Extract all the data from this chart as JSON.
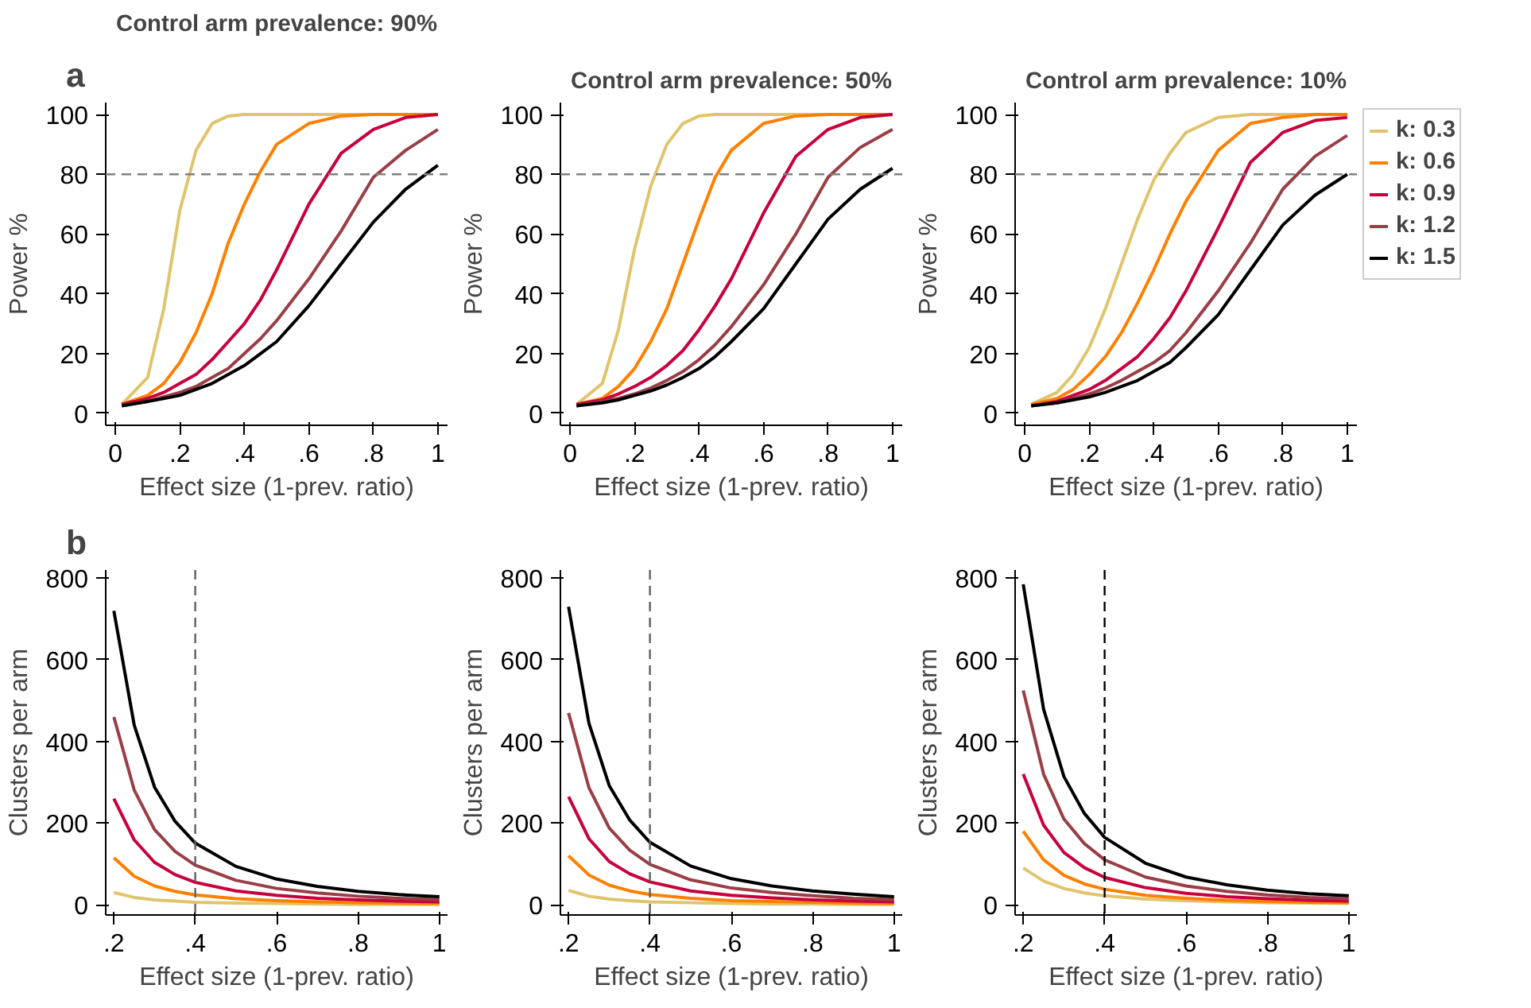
{
  "chart_data": [
    {
      "type": "line",
      "title": "Control arm prevalence: 90%",
      "annotations": [
        "a"
      ],
      "xlabel": "Effect size (1-prev. ratio)",
      "ylabel": "Power %",
      "x": [
        0.02,
        0.1,
        0.15,
        0.2,
        0.25,
        0.3,
        0.35,
        0.4,
        0.45,
        0.5,
        0.6,
        0.7,
        0.8,
        0.9,
        1
      ],
      "xlim": [
        -0.03,
        1.03
      ],
      "xticks": [
        0,
        {
          "value": 0.2,
          "label": ".2"
        },
        {
          "value": 0.4,
          "label": ".4"
        },
        {
          "value": 0.6,
          "label": ".6"
        },
        {
          "value": 0.8,
          "label": ".8"
        },
        1
      ],
      "ylim": [
        -4,
        104
      ],
      "yticks": [
        0,
        20,
        40,
        60,
        80,
        100
      ],
      "grid": false,
      "ref_lines": [
        {
          "axis": "y",
          "value": 80,
          "color": "#808080",
          "line_style": "dashed"
        }
      ],
      "series": [
        {
          "color": "#e0c46c",
          "values": [
            3,
            12,
            35,
            68,
            88,
            97,
            99.5,
            100,
            100,
            100,
            100,
            100,
            100,
            100,
            100
          ]
        },
        {
          "color": "#ff8000",
          "values": [
            3,
            6,
            10,
            17,
            27,
            40,
            57,
            70,
            81,
            90,
            97,
            99.5,
            100,
            100,
            100
          ]
        },
        {
          "color": "#c8003c",
          "values": [
            3,
            5,
            7,
            10,
            13,
            18,
            24,
            30,
            38,
            48,
            70,
            87,
            95,
            99,
            100
          ]
        },
        {
          "color": "#9a3e46",
          "values": [
            2.5,
            4,
            5.5,
            7,
            9,
            12,
            15,
            20,
            25,
            31,
            45,
            61,
            79,
            88,
            95
          ]
        },
        {
          "color": "#000000",
          "values": [
            2.5,
            4,
            5,
            6,
            8,
            10,
            13,
            16,
            20,
            24,
            36,
            50,
            64,
            75,
            83
          ]
        }
      ]
    },
    {
      "type": "line",
      "title": "Control arm prevalence: 50%",
      "xlabel": "Effect size (1-prev. ratio)",
      "ylabel": "Power %",
      "x": [
        0.02,
        0.1,
        0.15,
        0.2,
        0.25,
        0.3,
        0.35,
        0.4,
        0.45,
        0.5,
        0.6,
        0.7,
        0.8,
        0.9,
        1
      ],
      "xlim": [
        -0.03,
        1.03
      ],
      "xticks": [
        0,
        {
          "value": 0.2,
          "label": ".2"
        },
        {
          "value": 0.4,
          "label": ".4"
        },
        {
          "value": 0.6,
          "label": ".6"
        },
        {
          "value": 0.8,
          "label": ".8"
        },
        1
      ],
      "ylim": [
        -4,
        104
      ],
      "yticks": [
        0,
        20,
        40,
        60,
        80,
        100
      ],
      "grid": false,
      "ref_lines": [
        {
          "axis": "y",
          "value": 80,
          "color": "#808080",
          "line_style": "dashed"
        }
      ],
      "series": [
        {
          "color": "#e0c46c",
          "values": [
            3,
            10,
            28,
            55,
            76,
            90,
            97,
            99.5,
            100,
            100,
            100,
            100,
            100,
            100,
            100
          ]
        },
        {
          "color": "#ff8000",
          "values": [
            3,
            5,
            9,
            15,
            24,
            35,
            50,
            65,
            79,
            88,
            97,
            99.5,
            100,
            100,
            100
          ]
        },
        {
          "color": "#c8003c",
          "values": [
            3,
            4.5,
            6.5,
            9,
            12,
            16,
            21,
            28,
            36,
            45,
            67,
            86,
            95,
            99,
            100
          ]
        },
        {
          "color": "#9a3e46",
          "values": [
            2.5,
            4,
            5,
            6.5,
            8.5,
            11,
            14,
            18,
            23,
            29,
            43,
            60,
            79,
            89,
            95
          ]
        },
        {
          "color": "#000000",
          "values": [
            2.5,
            3.5,
            4.5,
            6,
            7.5,
            9.5,
            12,
            15,
            19,
            24,
            35,
            50,
            65,
            75,
            82
          ]
        }
      ]
    },
    {
      "type": "line",
      "title": "Control arm prevalence: 10%",
      "xlabel": "Effect size (1-prev. ratio)",
      "ylabel": "Power %",
      "x": [
        0.02,
        0.1,
        0.15,
        0.2,
        0.25,
        0.3,
        0.35,
        0.4,
        0.45,
        0.5,
        0.6,
        0.7,
        0.8,
        0.9,
        1
      ],
      "xlim": [
        -0.03,
        1.03
      ],
      "xticks": [
        0,
        {
          "value": 0.2,
          "label": ".2"
        },
        {
          "value": 0.4,
          "label": ".4"
        },
        {
          "value": 0.6,
          "label": ".6"
        },
        {
          "value": 0.8,
          "label": ".8"
        },
        1
      ],
      "ylim": [
        -4,
        104
      ],
      "yticks": [
        0,
        20,
        40,
        60,
        80,
        100
      ],
      "grid": false,
      "legend": "right",
      "ref_lines": [
        {
          "axis": "y",
          "value": 80,
          "color": "#808080",
          "line_style": "dashed"
        }
      ],
      "series": [
        {
          "name": "k: 0.3",
          "color": "#e0c46c",
          "values": [
            3,
            7,
            13,
            22,
            35,
            50,
            65,
            78,
            87,
            94,
            99,
            100,
            100,
            100,
            100
          ]
        },
        {
          "name": "k: 0.6",
          "color": "#ff8000",
          "values": [
            3,
            5,
            8,
            13,
            19,
            27,
            37,
            48,
            60,
            71,
            88,
            97,
            99,
            100,
            100
          ]
        },
        {
          "name": "k: 0.9",
          "color": "#c8003c",
          "values": [
            2.5,
            4,
            6,
            8,
            11,
            15,
            19,
            25,
            32,
            41,
            62,
            84,
            94,
            98,
            99
          ]
        },
        {
          "name": "k: 1.2",
          "color": "#9a3e46",
          "values": [
            2.5,
            3.5,
            5,
            6.5,
            8.5,
            11,
            14,
            17,
            21,
            27,
            41,
            57,
            75,
            86,
            93
          ]
        },
        {
          "name": "k: 1.5",
          "color": "#000000",
          "values": [
            2.5,
            3.5,
            4.5,
            5.5,
            7,
            9,
            11,
            14,
            17,
            22,
            33,
            48,
            63,
            73,
            80
          ]
        }
      ]
    },
    {
      "type": "line",
      "annotations": [
        "b"
      ],
      "xlabel": "Effect size (1-prev. ratio)",
      "ylabel": "Clusters per arm",
      "x": [
        0.2,
        0.25,
        0.3,
        0.35,
        0.4,
        0.5,
        0.6,
        0.7,
        0.8,
        0.9,
        1
      ],
      "xlim": [
        0.18,
        1.02
      ],
      "xticks": [
        {
          "value": 0.2,
          "label": ".2"
        },
        {
          "value": 0.4,
          "label": ".4"
        },
        {
          "value": 0.6,
          "label": ".6"
        },
        {
          "value": 0.8,
          "label": ".8"
        },
        1
      ],
      "ylim": [
        -25,
        820
      ],
      "yticks": [
        0,
        200,
        400,
        600,
        800
      ],
      "grid": false,
      "ref_lines": [
        {
          "axis": "x",
          "value": 0.4,
          "color": "#606060",
          "line_style": "dashed"
        }
      ],
      "series": [
        {
          "color": "#e0c46c",
          "values": [
            30,
            18,
            12,
            9,
            6,
            4,
            3,
            2,
            1,
            1,
            1
          ]
        },
        {
          "color": "#ff8000",
          "values": [
            115,
            70,
            46,
            33,
            24,
            15,
            10,
            7,
            5,
            4,
            3
          ]
        },
        {
          "color": "#c8003c",
          "values": [
            260,
            159,
            104,
            74,
            55,
            34,
            23,
            16,
            12,
            9,
            7
          ]
        },
        {
          "color": "#9a3e46",
          "values": [
            460,
            281,
            184,
            131,
            97,
            60,
            40,
            29,
            21,
            16,
            13
          ]
        },
        {
          "color": "#000000",
          "values": [
            720,
            440,
            288,
            205,
            151,
            94,
            63,
            45,
            33,
            25,
            20
          ]
        }
      ]
    },
    {
      "type": "line",
      "xlabel": "Effect size (1-prev. ratio)",
      "ylabel": "Clusters per arm",
      "x": [
        0.2,
        0.25,
        0.3,
        0.35,
        0.4,
        0.5,
        0.6,
        0.7,
        0.8,
        0.9,
        1
      ],
      "xlim": [
        0.18,
        1.02
      ],
      "xticks": [
        {
          "value": 0.2,
          "label": ".2"
        },
        {
          "value": 0.4,
          "label": ".4"
        },
        {
          "value": 0.6,
          "label": ".6"
        },
        {
          "value": 0.8,
          "label": ".8"
        },
        1
      ],
      "ylim": [
        -25,
        820
      ],
      "yticks": [
        0,
        200,
        400,
        600,
        800
      ],
      "grid": false,
      "ref_lines": [
        {
          "axis": "x",
          "value": 0.4,
          "color": "#606060",
          "line_style": "dashed"
        }
      ],
      "series": [
        {
          "color": "#e0c46c",
          "values": [
            35,
            21,
            14,
            10,
            7,
            5,
            3,
            2,
            2,
            1,
            1
          ]
        },
        {
          "color": "#ff8000",
          "values": [
            120,
            73,
            48,
            34,
            25,
            16,
            10,
            8,
            6,
            4,
            3
          ]
        },
        {
          "color": "#c8003c",
          "values": [
            265,
            162,
            106,
            76,
            56,
            34,
            23,
            17,
            12,
            9,
            7
          ]
        },
        {
          "color": "#9a3e46",
          "values": [
            470,
            287,
            188,
            134,
            99,
            61,
            41,
            30,
            22,
            16,
            13
          ]
        },
        {
          "color": "#000000",
          "values": [
            730,
            445,
            292,
            208,
            153,
            95,
            64,
            46,
            34,
            26,
            20
          ]
        }
      ]
    },
    {
      "type": "line",
      "xlabel": "Effect size (1-prev. ratio)",
      "ylabel": "Clusters per arm",
      "x": [
        0.2,
        0.25,
        0.3,
        0.35,
        0.4,
        0.5,
        0.6,
        0.7,
        0.8,
        0.9,
        1
      ],
      "xlim": [
        0.18,
        1.02
      ],
      "xticks": [
        {
          "value": 0.2,
          "label": ".2"
        },
        {
          "value": 0.4,
          "label": ".4"
        },
        {
          "value": 0.6,
          "label": ".6"
        },
        {
          "value": 0.8,
          "label": ".8"
        },
        1
      ],
      "ylim": [
        -25,
        820
      ],
      "yticks": [
        0,
        200,
        400,
        600,
        800
      ],
      "grid": false,
      "ref_lines": [
        {
          "axis": "x",
          "value": 0.4,
          "color": "#000000",
          "line_style": "dashed"
        }
      ],
      "series": [
        {
          "color": "#e0c46c",
          "values": [
            90,
            58,
            40,
            29,
            22,
            14,
            10,
            7,
            5,
            4,
            3
          ]
        },
        {
          "color": "#ff8000",
          "values": [
            180,
            110,
            72,
            51,
            38,
            23,
            16,
            11,
            8,
            6,
            5
          ]
        },
        {
          "color": "#c8003c",
          "values": [
            320,
            195,
            128,
            91,
            67,
            42,
            28,
            20,
            15,
            11,
            9
          ]
        },
        {
          "color": "#9a3e46",
          "values": [
            525,
            320,
            210,
            150,
            110,
            68,
            46,
            33,
            24,
            18,
            15
          ]
        },
        {
          "color": "#000000",
          "values": [
            785,
            479,
            314,
            224,
            165,
            102,
            68,
            49,
            36,
            27,
            22
          ]
        }
      ]
    }
  ]
}
